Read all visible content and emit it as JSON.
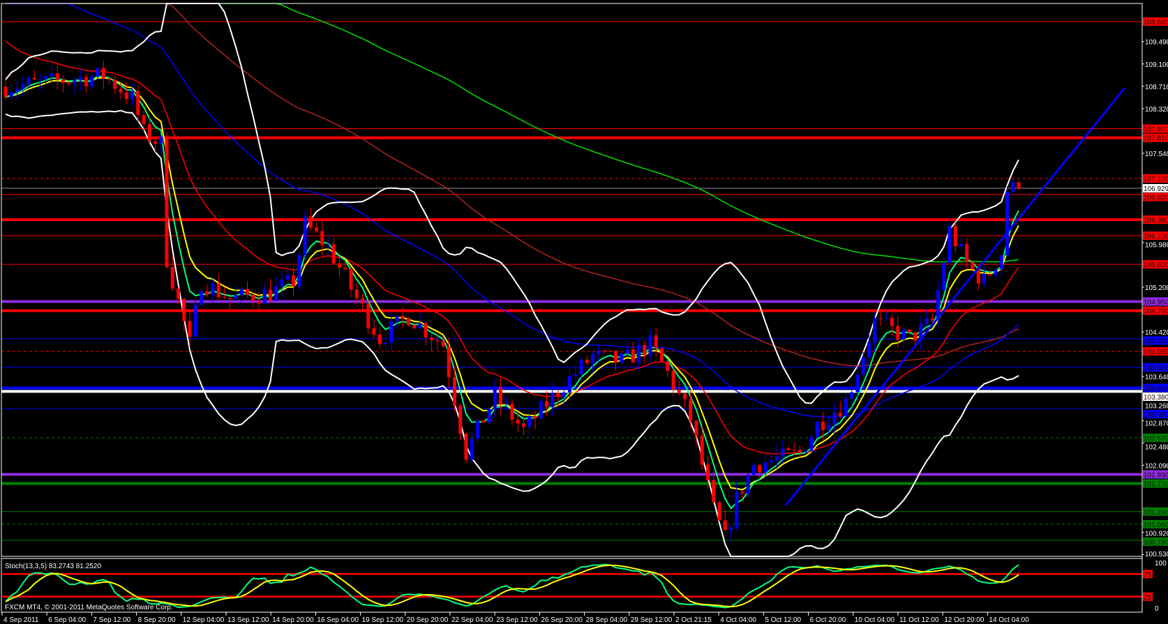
{
  "window": {
    "watermark": "FXCM MT4, © 2001-2011 MetaQuotes Software Corp."
  },
  "colors": {
    "background": "#000000",
    "bull_candle": "#0000ff",
    "bear_candle": "#ff0000",
    "frame": "#ffffff",
    "trendline": "#0000ff"
  },
  "chart_data": {
    "type": "candlestick",
    "symbol_timeframe": "H4",
    "price_axis_ticks": [
      "109.490",
      "109.100",
      "108.710",
      "108.320",
      "107.540",
      "105.980",
      "105.200",
      "104.420",
      "103.640",
      "103.260",
      "102.870",
      "102.480",
      "102.090",
      "100.920",
      "100.530"
    ],
    "time_axis_ticks": [
      "4 Sep 2011",
      "6 Sep 04:00",
      "7 Sep 12:00",
      "8 Sep 20:00",
      "12 Sep 04:00",
      "13 Sep 12:00",
      "14 Sep 20:00",
      "16 Sep 04:00",
      "19 Sep 12:00",
      "20 Sep 20:00",
      "22 Sep 04:00",
      "23 Sep 12:00",
      "26 Sep 20:00",
      "28 Sep 04:00",
      "29 Sep 12:00",
      "2 Oct 21:15",
      "4 Oct 04:00",
      "5 Oct 12:00",
      "6 Oct 20:00",
      "10 Oct 04:00",
      "11 Oct 12:00",
      "12 Oct 20:00",
      "14 Oct 04:00"
    ],
    "ylim": [
      100.53,
      109.84
    ],
    "current_price": "106.929",
    "approx_close_path": [
      [
        0,
        108.7
      ],
      [
        9,
        108.8
      ],
      [
        17,
        108.9
      ],
      [
        22,
        108.5
      ],
      [
        24,
        107.9
      ],
      [
        27,
        107.7
      ],
      [
        28,
        105.7
      ],
      [
        32,
        104.2
      ],
      [
        34,
        105.3
      ],
      [
        39,
        105.0
      ],
      [
        46,
        105.1
      ],
      [
        50,
        105.3
      ],
      [
        52,
        106.3
      ],
      [
        56,
        105.9
      ],
      [
        61,
        105.0
      ],
      [
        65,
        104.3
      ],
      [
        70,
        104.7
      ],
      [
        76,
        104.2
      ],
      [
        80,
        102.3
      ],
      [
        85,
        103.3
      ],
      [
        90,
        102.7
      ],
      [
        97,
        103.5
      ],
      [
        102,
        104.0
      ],
      [
        107,
        103.9
      ],
      [
        112,
        104.2
      ],
      [
        115,
        103.7
      ],
      [
        119,
        102.9
      ],
      [
        123,
        101.3
      ],
      [
        125,
        100.8
      ],
      [
        127,
        101.5
      ],
      [
        130,
        102.1
      ],
      [
        138,
        102.3
      ],
      [
        141,
        102.8
      ],
      [
        146,
        103.2
      ],
      [
        151,
        104.6
      ],
      [
        157,
        104.3
      ],
      [
        161,
        104.6
      ],
      [
        164,
        106.2
      ],
      [
        167,
        105.6
      ],
      [
        170,
        105.3
      ],
      [
        173,
        105.8
      ],
      [
        174,
        106.9
      ],
      [
        176,
        106.93
      ]
    ],
    "moving_averages": [
      {
        "period": 5,
        "color": "#00ff7f"
      },
      {
        "period": 8,
        "color": "#ffff00"
      },
      {
        "period": 21,
        "color": "#ff0000"
      },
      {
        "period": 55,
        "color": "#0000ff"
      },
      {
        "period": 100,
        "color": "#b22222"
      },
      {
        "period": 200,
        "color": "#00dd00"
      }
    ],
    "bollinger": {
      "period": 20,
      "deviation": 2,
      "color": "#ffffff"
    },
    "levels": [
      {
        "price": "109.840",
        "color": "#ff0000",
        "style": "thin"
      },
      {
        "price": "107.970",
        "color": "#ff0000",
        "style": "thin"
      },
      {
        "price": "107.810",
        "color": "#ff0000",
        "style": "thick"
      },
      {
        "price": "107.100",
        "color": "#ff0000",
        "style": "dashed"
      },
      {
        "price": "106.820",
        "color": "#ff0000",
        "style": "thin"
      },
      {
        "price": "106.380",
        "color": "#ff0000",
        "style": "thick"
      },
      {
        "price": "106.100",
        "color": "#ff0000",
        "style": "thin"
      },
      {
        "price": "105.600",
        "color": "#ff0000",
        "style": "thin"
      },
      {
        "price": "104.950",
        "color": "#8a2be2",
        "style": "thick"
      },
      {
        "price": "104.790",
        "color": "#ff0000",
        "style": "thick"
      },
      {
        "price": "104.300",
        "color": "#0000ff",
        "style": "thin"
      },
      {
        "price": "104.080",
        "color": "#ff0000",
        "style": "dashed"
      },
      {
        "price": "103.800",
        "color": "#0000ff",
        "style": "thin"
      },
      {
        "price": "103.440",
        "color": "#0000ff",
        "style": "thick"
      },
      {
        "price": "103.380",
        "color": "#ffffff",
        "style": "thick"
      },
      {
        "price": "103.080",
        "color": "#0000ff",
        "style": "thin"
      },
      {
        "price": "102.570",
        "color": "#008000",
        "style": "dashed"
      },
      {
        "price": "101.930",
        "color": "#8a2be2",
        "style": "thick"
      },
      {
        "price": "101.770",
        "color": "#008000",
        "style": "thick"
      },
      {
        "price": "101.280",
        "color": "#008000",
        "style": "thin"
      },
      {
        "price": "101.060",
        "color": "#008000",
        "style": "dashed"
      },
      {
        "price": "100.780",
        "color": "#008000",
        "style": "thin"
      }
    ],
    "stochastic": {
      "label": "Stoch(13,3,5) 83.2743 81.2520",
      "main_color": "#00ff7f",
      "signal_color": "#ffff00",
      "levels": [
        "75",
        "25"
      ],
      "axis_ticks": [
        "100",
        "0"
      ]
    }
  }
}
